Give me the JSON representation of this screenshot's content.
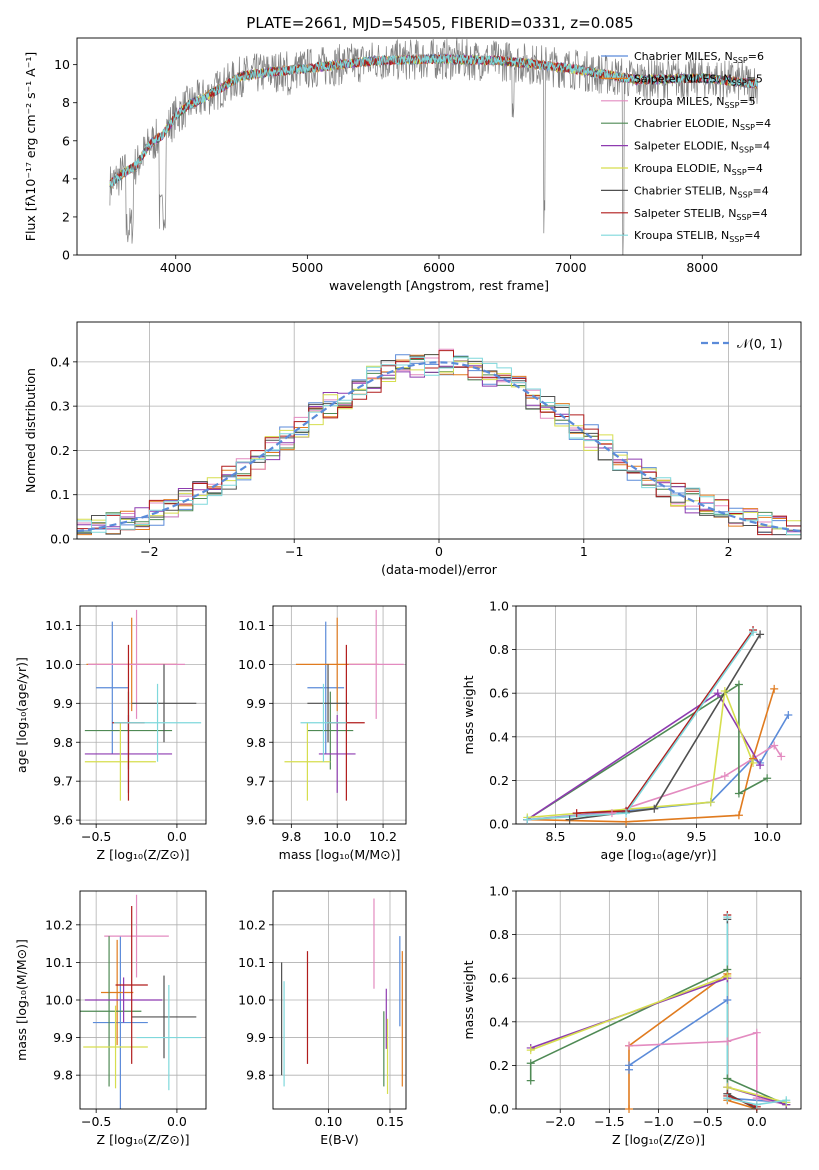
{
  "title": "PLATE=2661, MJD=54505, FIBERID=0331, z=0.085",
  "colors": {
    "chabrier_miles": "#5b8bd9",
    "salpeter_miles": "#e07b1f",
    "kroupa_miles": "#e38bc0",
    "chabrier_elodie": "#4f8a55",
    "salpeter_elodie": "#8e3bb0",
    "kroupa_elodie": "#d6de4e",
    "chabrier_stelib": "#505050",
    "salpeter_stelib": "#b01c1c",
    "kroupa_stelib": "#7fd8dc",
    "spectrum": "#808080",
    "gaussian": "#5b8bd9"
  },
  "chart_data": [
    {
      "id": "spectrum",
      "type": "line",
      "xlabel": "wavelength [Angstrom, rest frame]",
      "ylabel": "Flux [fλ10⁻¹⁷ erg cm⁻² s⁻¹ A⁻¹]",
      "xlim": [
        3250,
        8750
      ],
      "ylim": [
        0,
        11.4
      ],
      "xticks": [
        4000,
        5000,
        6000,
        7000,
        8000
      ],
      "yticks": [
        0,
        2,
        4,
        6,
        8,
        10
      ],
      "legend_position": "top-right",
      "legend": [
        "Chabrier MILES, N_SSP=6",
        "Salpeter MILES, N_SSP=5",
        "Kroupa MILES, N_SSP=5",
        "Chabrier ELODIE, N_SSP=4",
        "Salpeter ELODIE, N_SSP=4",
        "Kroupa ELODIE, N_SSP=4",
        "Chabrier STELIB, N_SSP=4",
        "Salpeter STELIB, N_SSP=4",
        "Kroupa STELIB, N_SSP=4"
      ],
      "continuum": {
        "x": [
          3500,
          3600,
          3700,
          3800,
          3900,
          4000,
          4100,
          4200,
          4300,
          4400,
          4500,
          4700,
          5000,
          5500,
          6000,
          6500,
          7000,
          7500,
          8000,
          8400
        ],
        "y": [
          3.7,
          4.3,
          4.7,
          5.8,
          6.3,
          7.3,
          7.9,
          8.2,
          8.6,
          9.0,
          9.4,
          9.6,
          9.8,
          10.2,
          10.3,
          10.2,
          9.8,
          9.2,
          9.3,
          9.0
        ]
      }
    },
    {
      "id": "residuals",
      "type": "line",
      "xlabel": "(data-model)/error",
      "ylabel": "Normed distribution",
      "xlim": [
        -2.5,
        2.5
      ],
      "ylim": [
        0,
        0.49
      ],
      "xticks": [
        -2,
        -1,
        0,
        1,
        2
      ],
      "yticks": [
        0.0,
        0.1,
        0.2,
        0.3,
        0.4
      ],
      "legend_position": "top-right",
      "legend": [
        "𝒩(0, 1)"
      ],
      "bin_width": 0.1
    },
    {
      "id": "age_vs_Z",
      "type": "scatter",
      "xlabel": "Z [log₁₀(Z/Z⊙)]",
      "ylabel": "age  [log₁₀(age/yr)]",
      "xlim": [
        -0.6,
        0.18
      ],
      "ylim": [
        9.59,
        10.15
      ],
      "xticks": [
        -0.5,
        0.0
      ],
      "yticks": [
        9.6,
        9.7,
        9.8,
        9.9,
        10.0,
        10.1
      ],
      "points": [
        {
          "c": "chabrier_miles",
          "x": -0.4,
          "y": 9.94,
          "ex": 0.1,
          "ey": 0.17
        },
        {
          "c": "salpeter_miles",
          "x": -0.28,
          "y": 10.0,
          "ex": 0.28,
          "ey": 0.12
        },
        {
          "c": "kroupa_miles",
          "x": -0.25,
          "y": 10.0,
          "ex": 0.3,
          "ey": 0.14
        },
        {
          "c": "chabrier_elodie",
          "x": -0.3,
          "y": 9.83,
          "ex": 0.27,
          "ey": 0.1
        },
        {
          "c": "salpeter_elodie",
          "x": -0.3,
          "y": 9.77,
          "ex": 0.27,
          "ey": 0.1
        },
        {
          "c": "kroupa_elodie",
          "x": -0.35,
          "y": 9.75,
          "ex": 0.22,
          "ey": 0.1
        },
        {
          "c": "chabrier_stelib",
          "x": -0.08,
          "y": 9.9,
          "ex": 0.2,
          "ey": 0.1
        },
        {
          "c": "salpeter_stelib",
          "x": -0.3,
          "y": 9.85,
          "ex": 0.1,
          "ey": 0.2
        },
        {
          "c": "kroupa_stelib",
          "x": -0.12,
          "y": 9.85,
          "ex": 0.27,
          "ey": 0.1
        }
      ]
    },
    {
      "id": "age_vs_mass",
      "type": "scatter",
      "xlabel": "mass [log₁₀(M/M⊙)]",
      "ylabel": "",
      "xlim": [
        9.72,
        10.3
      ],
      "ylim": [
        9.59,
        10.15
      ],
      "xticks": [
        9.8,
        10.0,
        10.2
      ],
      "yticks": [
        9.6,
        9.7,
        9.8,
        9.9,
        10.0,
        10.1
      ],
      "points": [
        {
          "c": "chabrier_miles",
          "x": 9.95,
          "y": 9.94,
          "ex": 0.08,
          "ey": 0.17
        },
        {
          "c": "salpeter_miles",
          "x": 10.0,
          "y": 10.0,
          "ex": 0.18,
          "ey": 0.12
        },
        {
          "c": "kroupa_miles",
          "x": 10.17,
          "y": 10.0,
          "ex": 0.12,
          "ey": 0.14
        },
        {
          "c": "chabrier_elodie",
          "x": 9.97,
          "y": 9.83,
          "ex": 0.1,
          "ey": 0.1
        },
        {
          "c": "salpeter_elodie",
          "x": 10.0,
          "y": 9.77,
          "ex": 0.08,
          "ey": 0.1
        },
        {
          "c": "kroupa_elodie",
          "x": 9.87,
          "y": 9.75,
          "ex": 0.1,
          "ey": 0.1
        },
        {
          "c": "chabrier_stelib",
          "x": 9.96,
          "y": 9.9,
          "ex": 0.09,
          "ey": 0.1
        },
        {
          "c": "salpeter_stelib",
          "x": 10.04,
          "y": 9.85,
          "ex": 0.08,
          "ey": 0.2
        },
        {
          "c": "kroupa_stelib",
          "x": 9.94,
          "y": 9.85,
          "ex": 0.1,
          "ey": 0.1
        }
      ]
    },
    {
      "id": "weight_vs_age",
      "type": "line",
      "xlabel": "age  [log₁₀(age/yr)]",
      "ylabel": "mass weight",
      "xlim": [
        8.22,
        10.24
      ],
      "ylim": [
        0,
        1.0
      ],
      "xticks": [
        8.5,
        9.0,
        9.5,
        10.0
      ],
      "yticks": [
        0.0,
        0.2,
        0.4,
        0.6,
        0.8,
        1.0
      ],
      "series": [
        {
          "c": "chabrier_miles",
          "x": [
            8.3,
            9.0,
            9.6,
            9.9,
            9.95,
            10.15
          ],
          "y": [
            0.02,
            0.06,
            0.1,
            0.3,
            0.28,
            0.5
          ]
        },
        {
          "c": "salpeter_miles",
          "x": [
            8.3,
            9.0,
            9.8,
            9.9,
            10.05
          ],
          "y": [
            0.02,
            0.01,
            0.04,
            0.3,
            0.62
          ]
        },
        {
          "c": "kroupa_miles",
          "x": [
            8.3,
            8.9,
            9.7,
            10.05,
            10.1
          ],
          "y": [
            0.02,
            0.05,
            0.22,
            0.36,
            0.31
          ]
        },
        {
          "c": "chabrier_elodie",
          "x": [
            8.3,
            9.8,
            9.8,
            10.0
          ],
          "y": [
            0.02,
            0.64,
            0.14,
            0.21
          ]
        },
        {
          "c": "salpeter_elodie",
          "x": [
            8.3,
            9.65,
            9.95
          ],
          "y": [
            0.02,
            0.6,
            0.27
          ]
        },
        {
          "c": "kroupa_elodie",
          "x": [
            8.3,
            9.6,
            9.7,
            9.9
          ],
          "y": [
            0.03,
            0.1,
            0.61,
            0.28
          ]
        },
        {
          "c": "chabrier_stelib",
          "x": [
            8.6,
            9.2,
            9.95
          ],
          "y": [
            0.02,
            0.07,
            0.87
          ]
        },
        {
          "c": "salpeter_stelib",
          "x": [
            8.65,
            9.0,
            9.9
          ],
          "y": [
            0.05,
            0.06,
            0.89
          ]
        },
        {
          "c": "kroupa_stelib",
          "x": [
            8.3,
            9.0,
            9.9
          ],
          "y": [
            0.02,
            0.05,
            0.88
          ]
        }
      ]
    },
    {
      "id": "mass_vs_Z",
      "type": "scatter",
      "xlabel": "Z [log₁₀(Z/Z⊙)]",
      "ylabel": "mass [log₁₀(M/M⊙)]",
      "xlim": [
        -0.6,
        0.18
      ],
      "ylim": [
        9.71,
        10.29
      ],
      "xticks": [
        -0.5,
        0.0
      ],
      "yticks": [
        9.8,
        9.9,
        10.0,
        10.1,
        10.2
      ],
      "points": [
        {
          "c": "chabrier_miles",
          "x": -0.35,
          "y": 9.94,
          "ex": 0.17,
          "ey": 0.23
        },
        {
          "c": "salpeter_miles",
          "x": -0.37,
          "y": 10.02,
          "ex": 0.1,
          "ey": 0.14
        },
        {
          "c": "kroupa_miles",
          "x": -0.25,
          "y": 10.17,
          "ex": 0.2,
          "ey": 0.11
        },
        {
          "c": "chabrier_elodie",
          "x": -0.42,
          "y": 9.97,
          "ex": 0.2,
          "ey": 0.2
        },
        {
          "c": "salpeter_elodie",
          "x": -0.33,
          "y": 10.0,
          "ex": 0.24,
          "ey": 0.06
        },
        {
          "c": "kroupa_elodie",
          "x": -0.38,
          "y": 9.875,
          "ex": 0.2,
          "ey": 0.11
        },
        {
          "c": "chabrier_stelib",
          "x": -0.08,
          "y": 9.955,
          "ex": 0.2,
          "ey": 0.11
        },
        {
          "c": "salpeter_stelib",
          "x": -0.28,
          "y": 10.04,
          "ex": 0.1,
          "ey": 0.21
        },
        {
          "c": "kroupa_stelib",
          "x": -0.05,
          "y": 9.9,
          "ex": 0.2,
          "ey": 0.14
        }
      ]
    },
    {
      "id": "mass_vs_ebv",
      "type": "scatter",
      "xlabel": "E(B-V)",
      "ylabel": "",
      "xlim": [
        0.055,
        0.163
      ],
      "ylim": [
        9.71,
        10.29
      ],
      "xticks": [
        0.1,
        0.15
      ],
      "xtick_labels": [
        "0.10",
        "0.15"
      ],
      "yticks": [
        9.8,
        9.9,
        10.0,
        10.1,
        10.2
      ],
      "points": [
        {
          "c": "chabrier_miles",
          "x": 0.158,
          "y": 10.05,
          "ey": 0.12
        },
        {
          "c": "salpeter_miles",
          "x": 0.16,
          "y": 9.95,
          "ey": 0.18
        },
        {
          "c": "kroupa_miles",
          "x": 0.137,
          "y": 10.15,
          "ey": 0.12
        },
        {
          "c": "chabrier_elodie",
          "x": 0.145,
          "y": 9.87,
          "ey": 0.1
        },
        {
          "c": "salpeter_elodie",
          "x": 0.147,
          "y": 9.95,
          "ey": 0.08
        },
        {
          "c": "kroupa_elodie",
          "x": 0.148,
          "y": 9.85,
          "ey": 0.1
        },
        {
          "c": "chabrier_stelib",
          "x": 0.062,
          "y": 9.95,
          "ey": 0.15
        },
        {
          "c": "salpeter_stelib",
          "x": 0.083,
          "y": 9.98,
          "ey": 0.15
        },
        {
          "c": "kroupa_stelib",
          "x": 0.064,
          "y": 9.91,
          "ey": 0.14
        }
      ]
    },
    {
      "id": "weight_vs_Z",
      "type": "line",
      "xlabel": "Z [log₁₀(Z/Z⊙)]",
      "ylabel": "mass weight",
      "xlim": [
        -2.45,
        0.45
      ],
      "ylim": [
        0,
        1.0
      ],
      "xticks": [
        -2.0,
        -1.5,
        -1.0,
        -0.5,
        0.0
      ],
      "yticks": [
        0.0,
        0.2,
        0.4,
        0.6,
        0.8,
        1.0
      ],
      "series": [
        {
          "c": "chabrier_miles",
          "x": [
            -1.3,
            -1.3,
            -0.3,
            -0.3,
            0.3
          ],
          "y": [
            0.18,
            0.2,
            0.5,
            0.05,
            0.03
          ]
        },
        {
          "c": "salpeter_miles",
          "x": [
            -1.3,
            -1.3,
            -0.3,
            -0.3,
            0.0
          ],
          "y": [
            0.0,
            0.29,
            0.62,
            0.04,
            0.0
          ]
        },
        {
          "c": "kroupa_miles",
          "x": [
            -1.3,
            -0.3,
            0.0,
            0.0,
            0.3
          ],
          "y": [
            0.29,
            0.31,
            0.35,
            0.05,
            0.02
          ]
        },
        {
          "c": "chabrier_elodie",
          "x": [
            -2.3,
            -2.3,
            -0.3,
            -0.3,
            0.3
          ],
          "y": [
            0.13,
            0.21,
            0.64,
            0.14,
            0.02
          ]
        },
        {
          "c": "salpeter_elodie",
          "x": [
            -2.3,
            -0.3,
            -0.3,
            0.3
          ],
          "y": [
            0.28,
            0.6,
            0.1,
            0.02
          ]
        },
        {
          "c": "kroupa_elodie",
          "x": [
            -2.3,
            -0.3,
            -0.3,
            0.3
          ],
          "y": [
            0.27,
            0.61,
            0.1,
            0.03
          ]
        },
        {
          "c": "chabrier_stelib",
          "x": [
            -0.3,
            -0.3,
            0.0
          ],
          "y": [
            0.87,
            0.07,
            0.0
          ]
        },
        {
          "c": "salpeter_stelib",
          "x": [
            -0.3,
            -0.3,
            0.0
          ],
          "y": [
            0.89,
            0.06,
            0.01
          ]
        },
        {
          "c": "kroupa_stelib",
          "x": [
            -0.3,
            -0.3,
            0.0,
            0.3
          ],
          "y": [
            0.88,
            0.05,
            0.02,
            0.04
          ]
        }
      ]
    }
  ]
}
